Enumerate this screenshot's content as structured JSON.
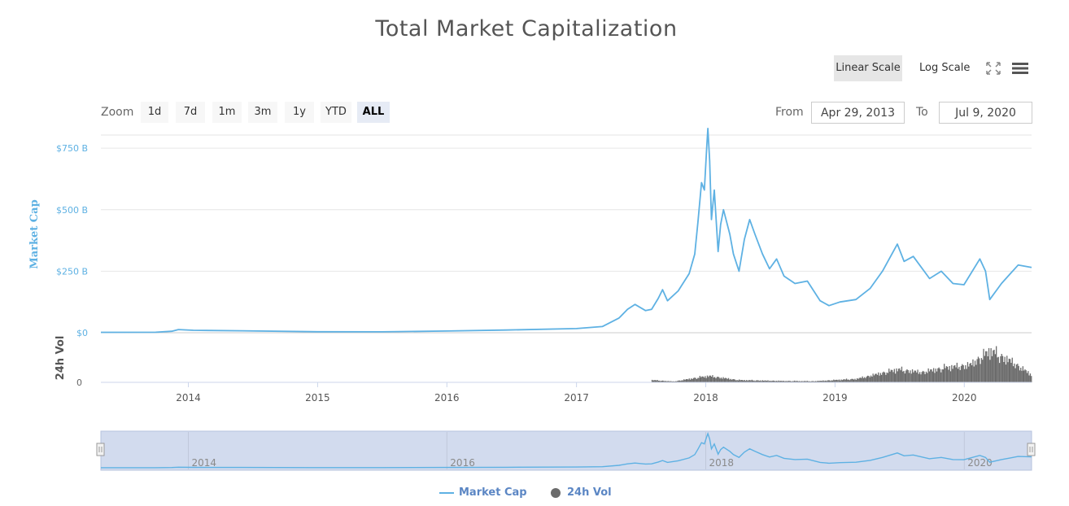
{
  "title": "Total Market Capitalization",
  "toolbar": {
    "linear_scale": "Linear Scale",
    "log_scale": "Log Scale",
    "fullscreen_icon": "fullscreen-icon",
    "menu_icon": "hamburger-menu-icon"
  },
  "range_selector": {
    "zoom_label": "Zoom",
    "buttons": [
      "1d",
      "7d",
      "1m",
      "3m",
      "1y",
      "YTD",
      "ALL"
    ],
    "active": "ALL",
    "from_label": "From",
    "from_value": "Apr 29, 2013",
    "to_label": "To",
    "to_value": "Jul 9, 2020"
  },
  "legend": {
    "market_cap": "Market Cap",
    "volume": "24h Vol"
  },
  "colors": {
    "market_cap_line": "#5eb1e3",
    "volume_bars": "#6b6b6b",
    "navigator_fill": "#d2dbee",
    "legend_text": "#5b86c4"
  },
  "chart_data": {
    "type": "line",
    "title": "Total Market Capitalization",
    "x_axis": {
      "type": "date",
      "range": [
        "2013-04-29",
        "2020-07-09"
      ],
      "ticks": [
        "2014",
        "2015",
        "2016",
        "2017",
        "2018",
        "2019",
        "2020"
      ]
    },
    "y_axes": [
      {
        "label": "Market Cap",
        "ticks": [
          "$0",
          "$250 B",
          "$500 B",
          "$750 B"
        ],
        "range": [
          0,
          800
        ],
        "unit": "B USD"
      },
      {
        "label": "24h Vol",
        "ticks": [
          "0"
        ],
        "unit": "relative"
      }
    ],
    "series": [
      {
        "name": "Market Cap",
        "unit": "B USD",
        "points": [
          [
            "2013-04-29",
            1.5
          ],
          [
            "2013-10-01",
            2
          ],
          [
            "2013-11-15",
            6
          ],
          [
            "2013-12-04",
            13
          ],
          [
            "2014-01-15",
            10
          ],
          [
            "2014-06-01",
            8
          ],
          [
            "2015-01-01",
            4
          ],
          [
            "2015-07-01",
            3.5
          ],
          [
            "2016-01-01",
            7
          ],
          [
            "2016-06-15",
            11
          ],
          [
            "2017-01-01",
            17
          ],
          [
            "2017-03-15",
            25
          ],
          [
            "2017-05-01",
            60
          ],
          [
            "2017-05-25",
            95
          ],
          [
            "2017-06-15",
            115
          ],
          [
            "2017-07-15",
            90
          ],
          [
            "2017-08-01",
            95
          ],
          [
            "2017-08-20",
            140
          ],
          [
            "2017-09-01",
            175
          ],
          [
            "2017-09-15",
            130
          ],
          [
            "2017-10-15",
            170
          ],
          [
            "2017-11-15",
            240
          ],
          [
            "2017-12-01",
            320
          ],
          [
            "2017-12-10",
            450
          ],
          [
            "2017-12-20",
            610
          ],
          [
            "2017-12-28",
            580
          ],
          [
            "2018-01-04",
            760
          ],
          [
            "2018-01-07",
            830
          ],
          [
            "2018-01-12",
            700
          ],
          [
            "2018-01-17",
            460
          ],
          [
            "2018-01-25",
            580
          ],
          [
            "2018-02-05",
            330
          ],
          [
            "2018-02-12",
            440
          ],
          [
            "2018-02-20",
            500
          ],
          [
            "2018-03-10",
            400
          ],
          [
            "2018-03-20",
            320
          ],
          [
            "2018-04-05",
            250
          ],
          [
            "2018-04-20",
            380
          ],
          [
            "2018-05-05",
            460
          ],
          [
            "2018-05-20",
            400
          ],
          [
            "2018-06-10",
            320
          ],
          [
            "2018-06-30",
            260
          ],
          [
            "2018-07-20",
            300
          ],
          [
            "2018-08-10",
            230
          ],
          [
            "2018-09-10",
            200
          ],
          [
            "2018-10-15",
            210
          ],
          [
            "2018-11-20",
            130
          ],
          [
            "2018-12-15",
            110
          ],
          [
            "2019-01-15",
            125
          ],
          [
            "2019-03-01",
            135
          ],
          [
            "2019-04-10",
            180
          ],
          [
            "2019-05-15",
            250
          ],
          [
            "2019-06-26",
            360
          ],
          [
            "2019-07-15",
            290
          ],
          [
            "2019-08-10",
            310
          ],
          [
            "2019-09-25",
            220
          ],
          [
            "2019-10-28",
            250
          ],
          [
            "2019-11-30",
            200
          ],
          [
            "2019-12-31",
            195
          ],
          [
            "2020-02-14",
            300
          ],
          [
            "2020-03-01",
            250
          ],
          [
            "2020-03-13",
            135
          ],
          [
            "2020-04-15",
            200
          ],
          [
            "2020-05-10",
            240
          ],
          [
            "2020-06-01",
            275
          ],
          [
            "2020-07-09",
            265
          ]
        ]
      },
      {
        "name": "24h Vol",
        "unit": "B USD",
        "points": [
          [
            "2017-08-01",
            8
          ],
          [
            "2017-10-01",
            3
          ],
          [
            "2017-12-15",
            18
          ],
          [
            "2018-01-10",
            22
          ],
          [
            "2018-04-01",
            8
          ],
          [
            "2018-08-01",
            5
          ],
          [
            "2018-11-01",
            4
          ],
          [
            "2019-03-01",
            12
          ],
          [
            "2019-06-26",
            45
          ],
          [
            "2019-09-01",
            35
          ],
          [
            "2019-11-01",
            50
          ],
          [
            "2020-01-15",
            60
          ],
          [
            "2020-03-13",
            110
          ],
          [
            "2020-05-15",
            70
          ],
          [
            "2020-07-09",
            25
          ]
        ]
      }
    ],
    "navigator": {
      "ticks": [
        "2014",
        "2016",
        "2018",
        "2020"
      ]
    },
    "grid": true,
    "legend_position": "bottom-center"
  }
}
